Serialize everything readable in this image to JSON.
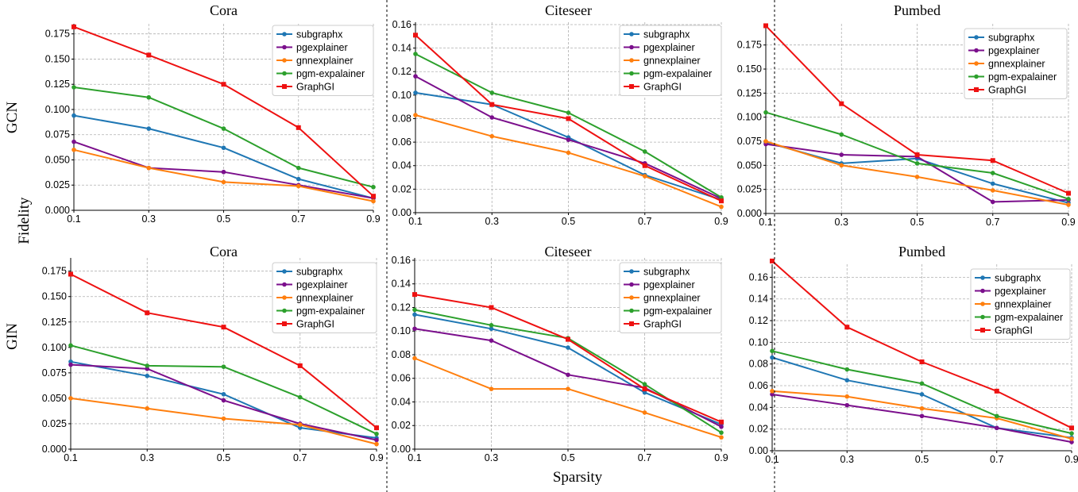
{
  "figure": {
    "row_labels": [
      "GCN",
      "GIN"
    ],
    "y_shared_label": "Fidelity",
    "x_shared_label": "Sparsity"
  },
  "colors": {
    "subgraphx": "#1f77b4",
    "pgexplainer": "#7b0f8c",
    "gnnexplainer": "#ff7f0e",
    "pgm-expalainer": "#2ca02c",
    "GraphGI": "#ee1111"
  },
  "chart_data": [
    {
      "type": "line",
      "title": "Cora",
      "model": "GCN",
      "x": [
        0.1,
        0.3,
        0.5,
        0.7,
        0.9
      ],
      "x_ticks": [
        "0.1",
        "0.3",
        "0.5",
        "0.7",
        "0.9"
      ],
      "y_ticks": [
        "0.000",
        "0.025",
        "0.050",
        "0.075",
        "0.100",
        "0.125",
        "0.150",
        "0.175"
      ],
      "ylim": [
        0,
        0.185
      ],
      "grid": true,
      "legend_position": "top-right",
      "series": [
        {
          "name": "subgraphx",
          "values": [
            0.094,
            0.081,
            0.062,
            0.031,
            0.012
          ]
        },
        {
          "name": "pgexplainer",
          "values": [
            0.068,
            0.042,
            0.038,
            0.025,
            0.012
          ]
        },
        {
          "name": "gnnexplainer",
          "values": [
            0.06,
            0.042,
            0.028,
            0.024,
            0.009
          ]
        },
        {
          "name": "pgm-expalainer",
          "values": [
            0.122,
            0.112,
            0.081,
            0.042,
            0.023
          ]
        },
        {
          "name": "GraphGI",
          "values": [
            0.182,
            0.154,
            0.125,
            0.082,
            0.014
          ]
        }
      ]
    },
    {
      "type": "line",
      "title": "Citeseer",
      "model": "GCN",
      "x": [
        0.1,
        0.3,
        0.5,
        0.7,
        0.9
      ],
      "x_ticks": [
        "0.1",
        "0.3",
        "0.5",
        "0.7",
        "0.9"
      ],
      "y_ticks": [
        "0.00",
        "0.02",
        "0.04",
        "0.06",
        "0.08",
        "0.10",
        "0.12",
        "0.14",
        "0.16"
      ],
      "ylim": [
        0,
        0.162
      ],
      "grid": true,
      "legend_position": "top-right",
      "series": [
        {
          "name": "subgraphx",
          "values": [
            0.102,
            0.092,
            0.064,
            0.032,
            0.011
          ]
        },
        {
          "name": "pgexplainer",
          "values": [
            0.116,
            0.081,
            0.062,
            0.042,
            0.012
          ]
        },
        {
          "name": "gnnexplainer",
          "values": [
            0.083,
            0.065,
            0.051,
            0.031,
            0.005
          ]
        },
        {
          "name": "pgm-expalainer",
          "values": [
            0.135,
            0.102,
            0.085,
            0.052,
            0.013
          ]
        },
        {
          "name": "GraphGI",
          "values": [
            0.151,
            0.092,
            0.08,
            0.04,
            0.01
          ]
        }
      ]
    },
    {
      "type": "line",
      "title": "Pumbed",
      "model": "GCN",
      "x": [
        0.1,
        0.3,
        0.5,
        0.7,
        0.9
      ],
      "x_ticks": [
        "0.1",
        "0.3",
        "0.5",
        "0.7",
        "0.9"
      ],
      "y_ticks": [
        "0.000",
        "0.025",
        "0.050",
        "0.075",
        "0.100",
        "0.125",
        "0.150",
        "0.175"
      ],
      "ylim": [
        0,
        0.197
      ],
      "grid": true,
      "legend_position": "top-right",
      "series": [
        {
          "name": "subgraphx",
          "values": [
            0.074,
            0.052,
            0.057,
            0.031,
            0.011
          ]
        },
        {
          "name": "pgexplainer",
          "values": [
            0.072,
            0.061,
            0.059,
            0.012,
            0.014
          ]
        },
        {
          "name": "gnnexplainer",
          "values": [
            0.075,
            0.05,
            0.038,
            0.024,
            0.009
          ]
        },
        {
          "name": "pgm-expalainer",
          "values": [
            0.105,
            0.082,
            0.052,
            0.042,
            0.015
          ]
        },
        {
          "name": "GraphGI",
          "values": [
            0.195,
            0.114,
            0.061,
            0.055,
            0.021
          ]
        }
      ]
    },
    {
      "type": "line",
      "title": "Cora",
      "model": "GIN",
      "x": [
        0.1,
        0.3,
        0.5,
        0.7,
        0.9
      ],
      "x_ticks": [
        "0.1",
        "0.3",
        "0.5",
        "0.7",
        "0.9"
      ],
      "y_ticks": [
        "0.000",
        "0.025",
        "0.050",
        "0.075",
        "0.100",
        "0.125",
        "0.150",
        "0.175"
      ],
      "ylim": [
        0,
        0.188
      ],
      "grid": true,
      "legend_position": "top-right",
      "series": [
        {
          "name": "subgraphx",
          "values": [
            0.086,
            0.072,
            0.054,
            0.021,
            0.011
          ]
        },
        {
          "name": "pgexplainer",
          "values": [
            0.083,
            0.079,
            0.048,
            0.025,
            0.009
          ]
        },
        {
          "name": "gnnexplainer",
          "values": [
            0.05,
            0.04,
            0.03,
            0.024,
            0.005
          ]
        },
        {
          "name": "pgm-expalainer",
          "values": [
            0.102,
            0.082,
            0.081,
            0.051,
            0.015
          ]
        },
        {
          "name": "GraphGI",
          "values": [
            0.172,
            0.134,
            0.12,
            0.082,
            0.021
          ]
        }
      ]
    },
    {
      "type": "line",
      "title": "Citeseer",
      "model": "GIN",
      "x": [
        0.1,
        0.3,
        0.5,
        0.7,
        0.9
      ],
      "x_ticks": [
        "0.1",
        "0.3",
        "0.5",
        "0.7",
        "0.9"
      ],
      "y_ticks": [
        "0.00",
        "0.02",
        "0.04",
        "0.06",
        "0.08",
        "0.10",
        "0.12",
        "0.14",
        "0.16"
      ],
      "ylim": [
        0,
        0.162
      ],
      "grid": true,
      "legend_position": "top-right",
      "series": [
        {
          "name": "subgraphx",
          "values": [
            0.114,
            0.102,
            0.086,
            0.048,
            0.021
          ]
        },
        {
          "name": "pgexplainer",
          "values": [
            0.102,
            0.092,
            0.063,
            0.052,
            0.019
          ]
        },
        {
          "name": "gnnexplainer",
          "values": [
            0.077,
            0.051,
            0.051,
            0.031,
            0.01
          ]
        },
        {
          "name": "pgm-expalainer",
          "values": [
            0.118,
            0.105,
            0.094,
            0.055,
            0.014
          ]
        },
        {
          "name": "GraphGI",
          "values": [
            0.131,
            0.12,
            0.093,
            0.051,
            0.023
          ]
        }
      ]
    },
    {
      "type": "line",
      "title": "Pumbed",
      "model": "GIN",
      "x": [
        0.1,
        0.3,
        0.5,
        0.7,
        0.9
      ],
      "x_ticks": [
        "0.1",
        "0.3",
        "0.5",
        "0.7",
        "0.9"
      ],
      "y_ticks": [
        "0.00",
        "0.02",
        "0.04",
        "0.06",
        "0.08",
        "0.10",
        "0.12",
        "0.14",
        "0.16"
      ],
      "ylim": [
        0,
        0.172
      ],
      "grid": true,
      "legend_position": "top-right",
      "series": [
        {
          "name": "subgraphx",
          "values": [
            0.086,
            0.065,
            0.052,
            0.021,
            0.012
          ]
        },
        {
          "name": "pgexplainer",
          "values": [
            0.052,
            0.042,
            0.032,
            0.021,
            0.008
          ]
        },
        {
          "name": "gnnexplainer",
          "values": [
            0.055,
            0.05,
            0.039,
            0.03,
            0.011
          ]
        },
        {
          "name": "pgm-expalainer",
          "values": [
            0.092,
            0.075,
            0.062,
            0.032,
            0.016
          ]
        },
        {
          "name": "GraphGI",
          "values": [
            0.175,
            0.114,
            0.082,
            0.055,
            0.021
          ]
        }
      ]
    }
  ]
}
